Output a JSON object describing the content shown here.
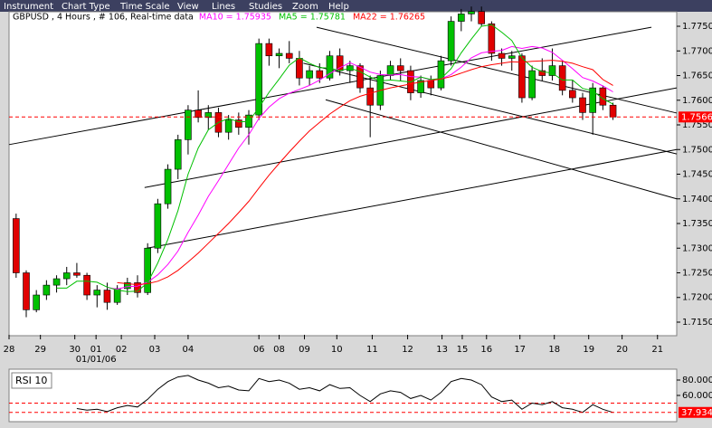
{
  "menu": [
    "Instrument",
    "Chart Type",
    "Time Scale",
    "View",
    "Lines",
    "Studies",
    "Zoom",
    "Help"
  ],
  "chart_data": [
    {
      "type": "candlestick",
      "title": "GBPUSD , 4 Hours , # 106, Real-time data",
      "up_color": "#00c000",
      "down_color": "#e00000",
      "open": [
        1.736,
        1.725,
        1.7175,
        1.7205,
        1.7225,
        1.7238,
        1.725,
        1.7245,
        1.7205,
        1.7215,
        1.719,
        1.7218,
        1.723,
        1.721,
        1.73,
        1.739,
        1.746,
        1.752,
        1.758,
        1.7565,
        1.7575,
        1.7535,
        1.756,
        1.7545,
        1.757,
        1.7715,
        1.769,
        1.7695,
        1.7685,
        1.7645,
        1.766,
        1.7645,
        1.769,
        1.766,
        1.767,
        1.7625,
        1.759,
        1.765,
        1.767,
        1.766,
        1.7615,
        1.764,
        1.7625,
        1.768,
        1.776,
        1.7775,
        1.778,
        1.7755,
        1.7695,
        1.7685,
        1.769,
        1.7605,
        1.766,
        1.765,
        1.767,
        1.762,
        1.7605,
        1.7575,
        1.7625,
        1.759
      ],
      "high": [
        1.737,
        1.7255,
        1.7215,
        1.7235,
        1.7245,
        1.7262,
        1.727,
        1.725,
        1.7225,
        1.723,
        1.7225,
        1.724,
        1.7245,
        1.731,
        1.74,
        1.747,
        1.753,
        1.759,
        1.762,
        1.759,
        1.7585,
        1.757,
        1.7575,
        1.758,
        1.7725,
        1.7725,
        1.7705,
        1.772,
        1.77,
        1.767,
        1.7675,
        1.77,
        1.7705,
        1.768,
        1.7675,
        1.765,
        1.766,
        1.768,
        1.7685,
        1.767,
        1.765,
        1.765,
        1.769,
        1.777,
        1.7785,
        1.779,
        1.779,
        1.776,
        1.7705,
        1.77,
        1.7695,
        1.767,
        1.7685,
        1.7705,
        1.768,
        1.764,
        1.7615,
        1.7635,
        1.763,
        1.7595
      ],
      "low": [
        1.724,
        1.716,
        1.717,
        1.7195,
        1.721,
        1.7225,
        1.724,
        1.7195,
        1.718,
        1.7175,
        1.7185,
        1.7205,
        1.72,
        1.7205,
        1.729,
        1.738,
        1.744,
        1.749,
        1.7555,
        1.754,
        1.7525,
        1.752,
        1.753,
        1.751,
        1.756,
        1.767,
        1.7665,
        1.7675,
        1.763,
        1.763,
        1.7635,
        1.764,
        1.765,
        1.7635,
        1.7615,
        1.7525,
        1.758,
        1.764,
        1.764,
        1.76,
        1.7605,
        1.761,
        1.762,
        1.767,
        1.774,
        1.776,
        1.775,
        1.768,
        1.767,
        1.766,
        1.7595,
        1.76,
        1.764,
        1.764,
        1.761,
        1.7595,
        1.756,
        1.753,
        1.758,
        1.756
      ],
      "close": [
        1.725,
        1.7175,
        1.7205,
        1.7225,
        1.7238,
        1.725,
        1.7245,
        1.7205,
        1.7215,
        1.719,
        1.7218,
        1.723,
        1.721,
        1.73,
        1.739,
        1.746,
        1.752,
        1.758,
        1.7565,
        1.7575,
        1.7535,
        1.756,
        1.7545,
        1.757,
        1.7715,
        1.769,
        1.7695,
        1.7685,
        1.7645,
        1.766,
        1.7645,
        1.769,
        1.766,
        1.767,
        1.7625,
        1.759,
        1.765,
        1.767,
        1.766,
        1.7615,
        1.764,
        1.7625,
        1.768,
        1.776,
        1.7775,
        1.778,
        1.7755,
        1.7695,
        1.7685,
        1.769,
        1.7605,
        1.766,
        1.765,
        1.767,
        1.762,
        1.7605,
        1.7575,
        1.7625,
        1.759,
        1.7566
      ],
      "series": [
        {
          "name": "MA10 = 1.75935",
          "color": "#ff00ff",
          "values": [
            null,
            null,
            null,
            null,
            null,
            null,
            null,
            null,
            null,
            1.722,
            1.7217,
            1.7222,
            1.7223,
            1.7231,
            1.7246,
            1.7267,
            1.7294,
            1.7332,
            1.7367,
            1.7405,
            1.7437,
            1.747,
            1.7503,
            1.753,
            1.7563,
            1.7586,
            1.7603,
            1.7614,
            1.7622,
            1.763,
            1.7641,
            1.7654,
            1.7666,
            1.7676,
            1.7667,
            1.7657,
            1.7652,
            1.7651,
            1.7652,
            1.7648,
            1.7647,
            1.7641,
            1.7643,
            1.7652,
            1.7667,
            1.7686,
            1.7696,
            1.7699,
            1.7701,
            1.7709,
            1.7705,
            1.7709,
            1.7706,
            1.7697,
            1.7681,
            1.7664,
            1.7646,
            1.7639,
            1.7629,
            1.7617
          ]
        },
        {
          "name": "MA5 = 1.75781",
          "color": "#00c000",
          "values": [
            null,
            null,
            null,
            null,
            1.7219,
            1.7219,
            1.7233,
            1.7233,
            1.7231,
            1.7221,
            1.7215,
            1.7212,
            1.7213,
            1.723,
            1.727,
            1.7318,
            1.7376,
            1.745,
            1.7503,
            1.754,
            1.7555,
            1.7563,
            1.7556,
            1.7557,
            1.7585,
            1.7616,
            1.7643,
            1.7671,
            1.7686,
            1.7675,
            1.7666,
            1.7665,
            1.766,
            1.7665,
            1.7658,
            1.7647,
            1.7639,
            1.7641,
            1.7639,
            1.7637,
            1.7647,
            1.7642,
            1.7644,
            1.7664,
            1.7696,
            1.7724,
            1.775,
            1.7753,
            1.7738,
            1.7721,
            1.7686,
            1.7667,
            1.7658,
            1.7655,
            1.7641,
            1.7641,
            1.7624,
            1.7619,
            1.7603,
            1.7592
          ]
        },
        {
          "name": "MA22 = 1.76265",
          "color": "#ff0000",
          "values": [
            null,
            null,
            null,
            null,
            null,
            null,
            null,
            null,
            null,
            null,
            1.723,
            1.7228,
            1.7226,
            1.7228,
            1.7233,
            1.7242,
            1.7255,
            1.7272,
            1.729,
            1.731,
            1.733,
            1.735,
            1.7372,
            1.7395,
            1.7422,
            1.7448,
            1.7472,
            1.7495,
            1.7517,
            1.7538,
            1.7555,
            1.7572,
            1.7586,
            1.7599,
            1.7608,
            1.7614,
            1.762,
            1.7625,
            1.7629,
            1.7633,
            1.7637,
            1.764,
            1.7643,
            1.7648,
            1.7655,
            1.7662,
            1.7668,
            1.7672,
            1.7675,
            1.7678,
            1.7677,
            1.7679,
            1.768,
            1.7681,
            1.7679,
            1.7675,
            1.7668,
            1.7662,
            1.7642,
            1.763
          ]
        }
      ],
      "trend_lines": [
        {
          "x": [
            -0.7,
            62.8
          ],
          "y": [
            1.751,
            1.7748
          ]
        },
        {
          "x": [
            12.7,
            65.3
          ],
          "y": [
            1.7423,
            1.7625
          ]
        },
        {
          "x": [
            12.7,
            65.3
          ],
          "y": [
            1.7299,
            1.75
          ]
        },
        {
          "x": [
            29.7,
            65.3
          ],
          "y": [
            1.7748,
            1.7574
          ]
        },
        {
          "x": [
            28.4,
            65.3
          ],
          "y": [
            1.7675,
            1.7491
          ]
        },
        {
          "x": [
            30.6,
            65.3
          ],
          "y": [
            1.7601,
            1.74
          ]
        }
      ],
      "xlim": [
        -0.7,
        65.3
      ],
      "xticks": [
        {
          "value": -0.7,
          "label": "28"
        },
        {
          "value": 2.4,
          "label": "29"
        },
        {
          "value": 5.8,
          "label": "30"
        },
        {
          "value": 7.9,
          "label": "01"
        },
        {
          "value": 10.4,
          "label": "02"
        },
        {
          "value": 13.7,
          "label": "03"
        },
        {
          "value": 17.0,
          "label": "04"
        },
        {
          "value": 24.0,
          "label": "06"
        },
        {
          "value": 26.0,
          "label": "08"
        },
        {
          "value": 28.5,
          "label": "09"
        },
        {
          "value": 31.7,
          "label": "10"
        },
        {
          "value": 35.2,
          "label": "11"
        },
        {
          "value": 38.7,
          "label": "12"
        },
        {
          "value": 42.1,
          "label": "13"
        },
        {
          "value": 44.1,
          "label": "15"
        },
        {
          "value": 46.5,
          "label": "16"
        },
        {
          "value": 49.8,
          "label": "17"
        },
        {
          "value": 53.2,
          "label": "18"
        },
        {
          "value": 56.6,
          "label": "19"
        },
        {
          "value": 59.9,
          "label": "20"
        },
        {
          "value": 63.4,
          "label": "21"
        }
      ],
      "x_note": "01/01/06",
      "ylim": [
        1.71243,
        1.77794
      ],
      "yticks": [
        {
          "value": 1.715,
          "label": "1.7150"
        },
        {
          "value": 1.72,
          "label": "1.7200"
        },
        {
          "value": 1.725,
          "label": "1.7250"
        },
        {
          "value": 1.73,
          "label": "1.7300"
        },
        {
          "value": 1.735,
          "label": "1.7350"
        },
        {
          "value": 1.74,
          "label": "1.7400"
        },
        {
          "value": 1.745,
          "label": "1.7450"
        },
        {
          "value": 1.75,
          "label": "1.7500"
        },
        {
          "value": 1.755,
          "label": "1.7550"
        },
        {
          "value": 1.76,
          "label": "1.7600"
        },
        {
          "value": 1.765,
          "label": "1.7650"
        },
        {
          "value": 1.77,
          "label": "1.7700"
        },
        {
          "value": 1.775,
          "label": "1.7750"
        }
      ]
    },
    {
      "type": "line",
      "title": "RSI 10",
      "color": "#000000",
      "ref_level": 50,
      "values": [
        null,
        null,
        null,
        null,
        null,
        null,
        43,
        41,
        42,
        39,
        44,
        47,
        45,
        55,
        68,
        78,
        84,
        86,
        80,
        76,
        70,
        72,
        67,
        66,
        82,
        78,
        80,
        76,
        68,
        70,
        66,
        74,
        69,
        70,
        60,
        52,
        62,
        66,
        64,
        56,
        60,
        54,
        64,
        78,
        82,
        80,
        74,
        58,
        52,
        54,
        42,
        50,
        48,
        52,
        44,
        42,
        38,
        48,
        42,
        37.934
      ],
      "xlim": [
        -0.7,
        65.3
      ],
      "ylim": [
        25.9,
        94.1
      ],
      "yticks": [
        {
          "value": 80,
          "label": "80.000"
        },
        {
          "value": 60,
          "label": "60.000"
        }
      ]
    }
  ]
}
